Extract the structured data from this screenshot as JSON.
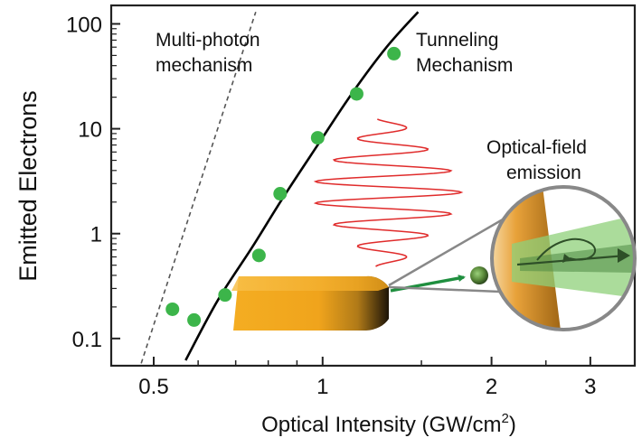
{
  "chart_data": {
    "type": "scatter",
    "xlabel": "Optical Intensity (GW/cm",
    "xlabel_sup": "2",
    "xlabel_close": ")",
    "ylabel": "Emitted Electrons",
    "xscale": "log",
    "yscale": "log",
    "xlim": [
      0.42,
      3.6
    ],
    "ylim": [
      0.055,
      150
    ],
    "xticks": [
      0.5,
      1,
      2,
      3
    ],
    "xtick_labels": [
      "0.5",
      "1",
      "2",
      "3"
    ],
    "yticks": [
      0.1,
      1,
      10,
      100
    ],
    "ytick_labels": [
      "0.1",
      "1",
      "10",
      "100"
    ],
    "grid": false,
    "series": [
      {
        "name": "",
        "kind": "points",
        "color": "#3cb54a",
        "x": [
          0.54,
          0.59,
          0.67,
          0.77,
          0.84,
          0.98,
          1.15,
          1.34
        ],
        "y": [
          0.19,
          0.15,
          0.26,
          0.62,
          2.4,
          8.2,
          21.5,
          52
        ]
      },
      {
        "name": "",
        "kind": "line",
        "style": "solid",
        "color": "#000000",
        "x": [
          0.57,
          0.65,
          0.75,
          0.85,
          0.98,
          1.13,
          1.3,
          1.48
        ],
        "y": [
          0.062,
          0.23,
          0.75,
          2.2,
          7.0,
          22,
          60,
          130
        ]
      },
      {
        "name": "",
        "kind": "line",
        "style": "dashed",
        "color": "#555555",
        "x": [
          0.475,
          0.76
        ],
        "y": [
          0.058,
          130
        ]
      }
    ],
    "annotations": [
      {
        "id": "multiphoton",
        "lines": [
          "Multi-photon",
          "mechanism"
        ]
      },
      {
        "id": "tunneling",
        "lines": [
          "Tunneling",
          "Mechanism"
        ]
      },
      {
        "id": "optical_field",
        "lines": [
          "Optical-field",
          "emission"
        ]
      }
    ]
  },
  "colors": {
    "points": "#3cb54a",
    "pulse": "#e02c2c",
    "tip": "#f2a91e",
    "arrow": "#1f8f3f",
    "field": "#8fd07a"
  }
}
